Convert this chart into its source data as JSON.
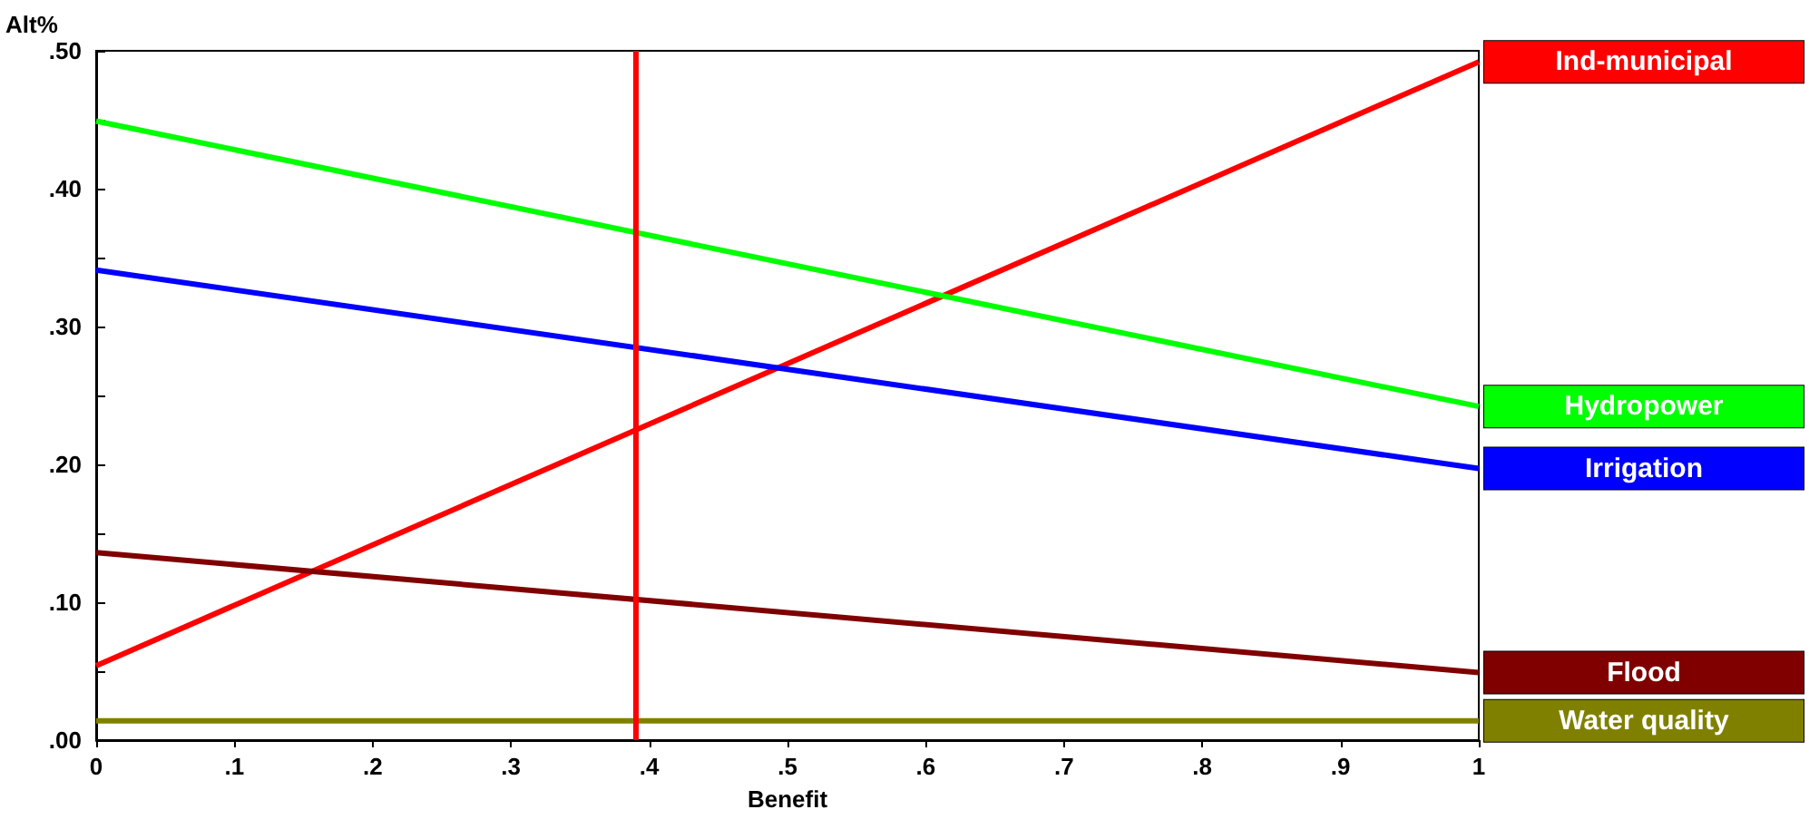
{
  "chart_data": {
    "type": "line",
    "xlabel": "Benefit",
    "ylabel": "Alt%",
    "x": [
      0,
      1
    ],
    "xlim": [
      0,
      1
    ],
    "xticks": [
      {
        "value": 0,
        "label": "0"
      },
      {
        "value": 0.1,
        "label": ".1"
      },
      {
        "value": 0.2,
        "label": ".2"
      },
      {
        "value": 0.3,
        "label": ".3"
      },
      {
        "value": 0.4,
        "label": ".4"
      },
      {
        "value": 0.5,
        "label": ".5"
      },
      {
        "value": 0.6,
        "label": ".6"
      },
      {
        "value": 0.7,
        "label": ".7"
      },
      {
        "value": 0.8,
        "label": ".8"
      },
      {
        "value": 0.9,
        "label": ".9"
      },
      {
        "value": 1,
        "label": "1"
      }
    ],
    "ylim": [
      0,
      0.5
    ],
    "yticks": [
      {
        "value": 0,
        "label": ".00"
      },
      {
        "value": 0.05,
        "label": null
      },
      {
        "value": 0.1,
        "label": ".10"
      },
      {
        "value": 0.15,
        "label": null
      },
      {
        "value": 0.2,
        "label": ".20"
      },
      {
        "value": 0.25,
        "label": null
      },
      {
        "value": 0.3,
        "label": ".30"
      },
      {
        "value": 0.35,
        "label": null
      },
      {
        "value": 0.4,
        "label": ".40"
      },
      {
        "value": 0.45,
        "label": null
      },
      {
        "value": 0.5,
        "label": ".50"
      }
    ],
    "series": [
      {
        "name": "Ind-municipal",
        "color": "#ff0000",
        "values": [
          0.054,
          0.492
        ]
      },
      {
        "name": "Hydropower",
        "color": "#00ff00",
        "values": [
          0.449,
          0.242
        ]
      },
      {
        "name": "Irrigation",
        "color": "#0000ff",
        "values": [
          0.341,
          0.197
        ]
      },
      {
        "name": "Flood",
        "color": "#800000",
        "values": [
          0.136,
          0.049
        ]
      },
      {
        "name": "Water quality",
        "color": "#808000",
        "values": [
          0.014,
          0.014
        ]
      }
    ],
    "ref_lines": [
      {
        "axis": "x",
        "value": 0.39,
        "color": "#ff0000"
      }
    ],
    "grid": false,
    "legend": false,
    "marker": "none",
    "line_style": "solid"
  }
}
